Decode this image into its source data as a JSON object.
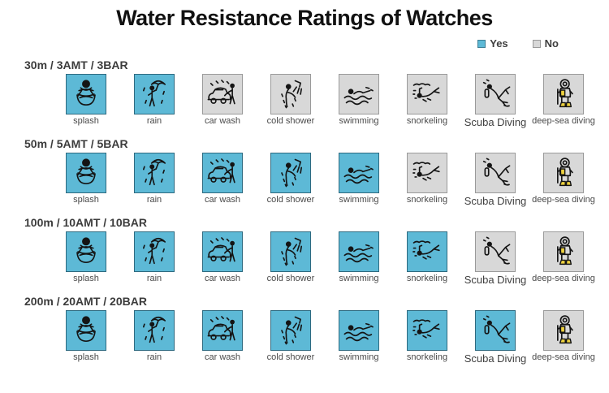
{
  "title": "Water Resistance Ratings of Watches",
  "legend": {
    "yes_label": "Yes",
    "no_label": "No",
    "yes_color": "#5db9d6",
    "no_color": "#d8d8d8"
  },
  "activities": [
    {
      "id": "splash",
      "label": "splash",
      "icon": "splash-icon"
    },
    {
      "id": "rain",
      "label": "rain",
      "icon": "rain-icon"
    },
    {
      "id": "carwash",
      "label": "car wash",
      "icon": "car-wash-icon"
    },
    {
      "id": "shower",
      "label": "cold shower",
      "icon": "cold-shower-icon"
    },
    {
      "id": "swim",
      "label": "swimming",
      "icon": "swimming-icon"
    },
    {
      "id": "snorkel",
      "label": "snorkeling",
      "icon": "snorkeling-icon"
    },
    {
      "id": "scuba",
      "label": "Scuba Diving",
      "icon": "scuba-diving-icon"
    },
    {
      "id": "deepsea",
      "label": "deep-sea diving",
      "icon": "deep-sea-diving-icon"
    }
  ],
  "ratings": [
    {
      "label": "30m / 3AMT / 3BAR",
      "values": [
        "yes",
        "yes",
        "no",
        "no",
        "no",
        "no",
        "no",
        "no"
      ]
    },
    {
      "label": "50m / 5AMT / 5BAR",
      "values": [
        "yes",
        "yes",
        "yes",
        "yes",
        "yes",
        "no",
        "no",
        "no"
      ]
    },
    {
      "label": "100m / 10AMT / 10BAR",
      "values": [
        "yes",
        "yes",
        "yes",
        "yes",
        "yes",
        "yes",
        "no",
        "no"
      ]
    },
    {
      "label": "200m / 20AMT / 20BAR",
      "values": [
        "yes",
        "yes",
        "yes",
        "yes",
        "yes",
        "yes",
        "yes",
        "no"
      ]
    }
  ],
  "chart_data": {
    "type": "heatmap",
    "title": "Water Resistance Ratings of Watches",
    "rows": [
      "30m / 3AMT / 3BAR",
      "50m / 5AMT / 5BAR",
      "100m / 10AMT / 10BAR",
      "200m / 20AMT / 20BAR"
    ],
    "columns": [
      "splash",
      "rain",
      "car wash",
      "cold shower",
      "swimming",
      "snorkeling",
      "Scuba Diving",
      "deep-sea diving"
    ],
    "values": [
      [
        "Yes",
        "Yes",
        "No",
        "No",
        "No",
        "No",
        "No",
        "No"
      ],
      [
        "Yes",
        "Yes",
        "Yes",
        "Yes",
        "Yes",
        "No",
        "No",
        "No"
      ],
      [
        "Yes",
        "Yes",
        "Yes",
        "Yes",
        "Yes",
        "Yes",
        "No",
        "No"
      ],
      [
        "Yes",
        "Yes",
        "Yes",
        "Yes",
        "Yes",
        "Yes",
        "Yes",
        "No"
      ]
    ],
    "legend_entries": [
      "Yes",
      "No"
    ],
    "legend_position": "top-right",
    "yes_color": "#5db9d6",
    "no_color": "#d8d8d8",
    "grid": false
  }
}
